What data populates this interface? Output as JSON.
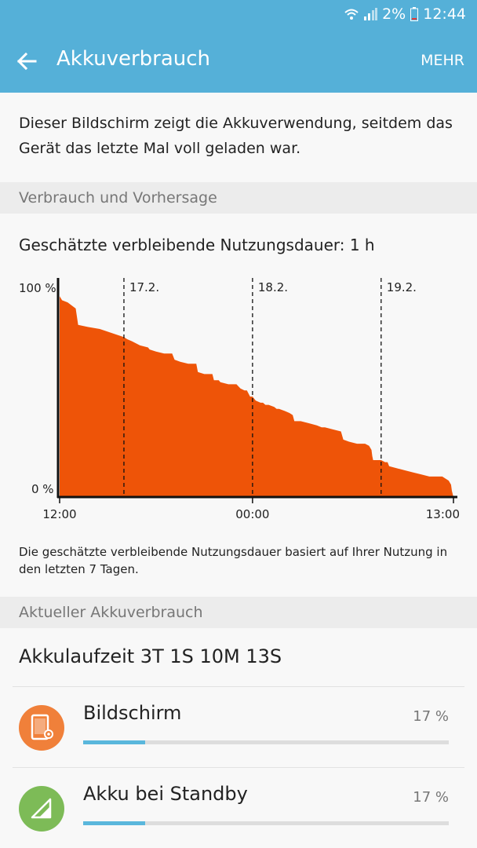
{
  "status_bar": {
    "battery_percent": "2%",
    "time": "12:44",
    "icons": [
      "wifi-icon",
      "signal-icon",
      "battery-low-icon"
    ]
  },
  "app_bar": {
    "title": "Akkuverbrauch",
    "more_label": "MEHR",
    "back_icon": "arrow-back-icon",
    "color": "#55b0d8"
  },
  "intro_text": "Dieser Bildschirm zeigt die Akkuverwendung, seitdem das Gerät das letzte Mal voll geladen war.",
  "section_usage_forecast": "Verbrauch und Vorhersage",
  "estimate_text": "Geschätzte verbleibende Nutzungsdauer: 1 h",
  "chart_data": {
    "type": "area",
    "x_unit": "hours since 12:00",
    "x": [
      0,
      0.3,
      1.0,
      2.0,
      2.3,
      3.5,
      5.0,
      8.0,
      8.4,
      9.0,
      9.5,
      10.0,
      11.0,
      11.2,
      12.0,
      13.0,
      14.0,
      14.3,
      15.0,
      16.0,
      17.0,
      17.2,
      18.0,
      19.0,
      19.2,
      19.8,
      20.0,
      21.0,
      22.0,
      22.5,
      23.0,
      23.3,
      23.7,
      24.0,
      24.4,
      25.0,
      25.3,
      25.6,
      26.0,
      26.7,
      27.0,
      27.3,
      28.0,
      28.6,
      29.0,
      29.2,
      30.0,
      31.0,
      32.0,
      32.6,
      33.0,
      34.0,
      35.0,
      35.3,
      36.0,
      37.0,
      38.0,
      38.5,
      38.8,
      38.9,
      39.0,
      40.0,
      40.5,
      40.8,
      41.0,
      42.0,
      43.0,
      44.0,
      45.0,
      46.0,
      47.0,
      47.6,
      48.0,
      48.4,
      48.7,
      48.8,
      49.0
    ],
    "y": [
      98,
      96,
      95,
      92,
      84,
      83,
      82,
      78,
      77,
      76,
      75,
      74,
      73,
      72,
      71,
      70,
      70,
      67,
      66,
      65,
      65,
      61,
      60,
      60,
      57,
      57,
      56,
      55,
      55,
      53,
      52,
      52,
      49,
      49,
      47,
      46,
      46,
      45,
      45,
      44,
      43,
      43,
      42,
      41,
      40,
      37,
      37,
      36,
      35,
      34,
      34,
      33,
      32,
      28,
      27,
      26,
      26,
      25,
      23,
      20,
      18,
      18,
      17,
      17,
      15,
      14,
      13,
      12,
      11,
      10,
      10,
      10,
      9,
      8,
      6,
      3,
      0
    ],
    "xlim": [
      0,
      49
    ],
    "ylim": [
      0,
      100
    ],
    "y_tick_labels": [
      "100 %",
      "0 %"
    ],
    "x_tick_labels": [
      {
        "label": "12:00",
        "x": 0
      },
      {
        "label": "00:00",
        "x": 24
      },
      {
        "label": "13:00",
        "x": 49
      }
    ],
    "date_markers": [
      {
        "label": "17.2.",
        "x": 8
      },
      {
        "label": "18.2.",
        "x": 24
      },
      {
        "label": "19.2.",
        "x": 40
      }
    ],
    "fill_color": "#ee5408",
    "grid": false
  },
  "chart_note": "Die geschätzte verbleibende Nutzungsdauer basiert auf Ihrer Nutzung in den letzten 7 Tagen.",
  "section_current_usage": "Aktueller Akkuverbrauch",
  "battery_uptime": "Akkulaufzeit 3T 1S 10M 13S",
  "usage_items": [
    {
      "name": "Bildschirm",
      "percent": "17 %",
      "value": 17,
      "icon": "screen-icon",
      "icon_color": "#f0803a"
    },
    {
      "name": "Akku bei Standby",
      "percent": "17 %",
      "value": 17,
      "icon": "signal-standby-icon",
      "icon_color": "#7dbb57"
    }
  ],
  "progress_color": "#5ab7dc"
}
